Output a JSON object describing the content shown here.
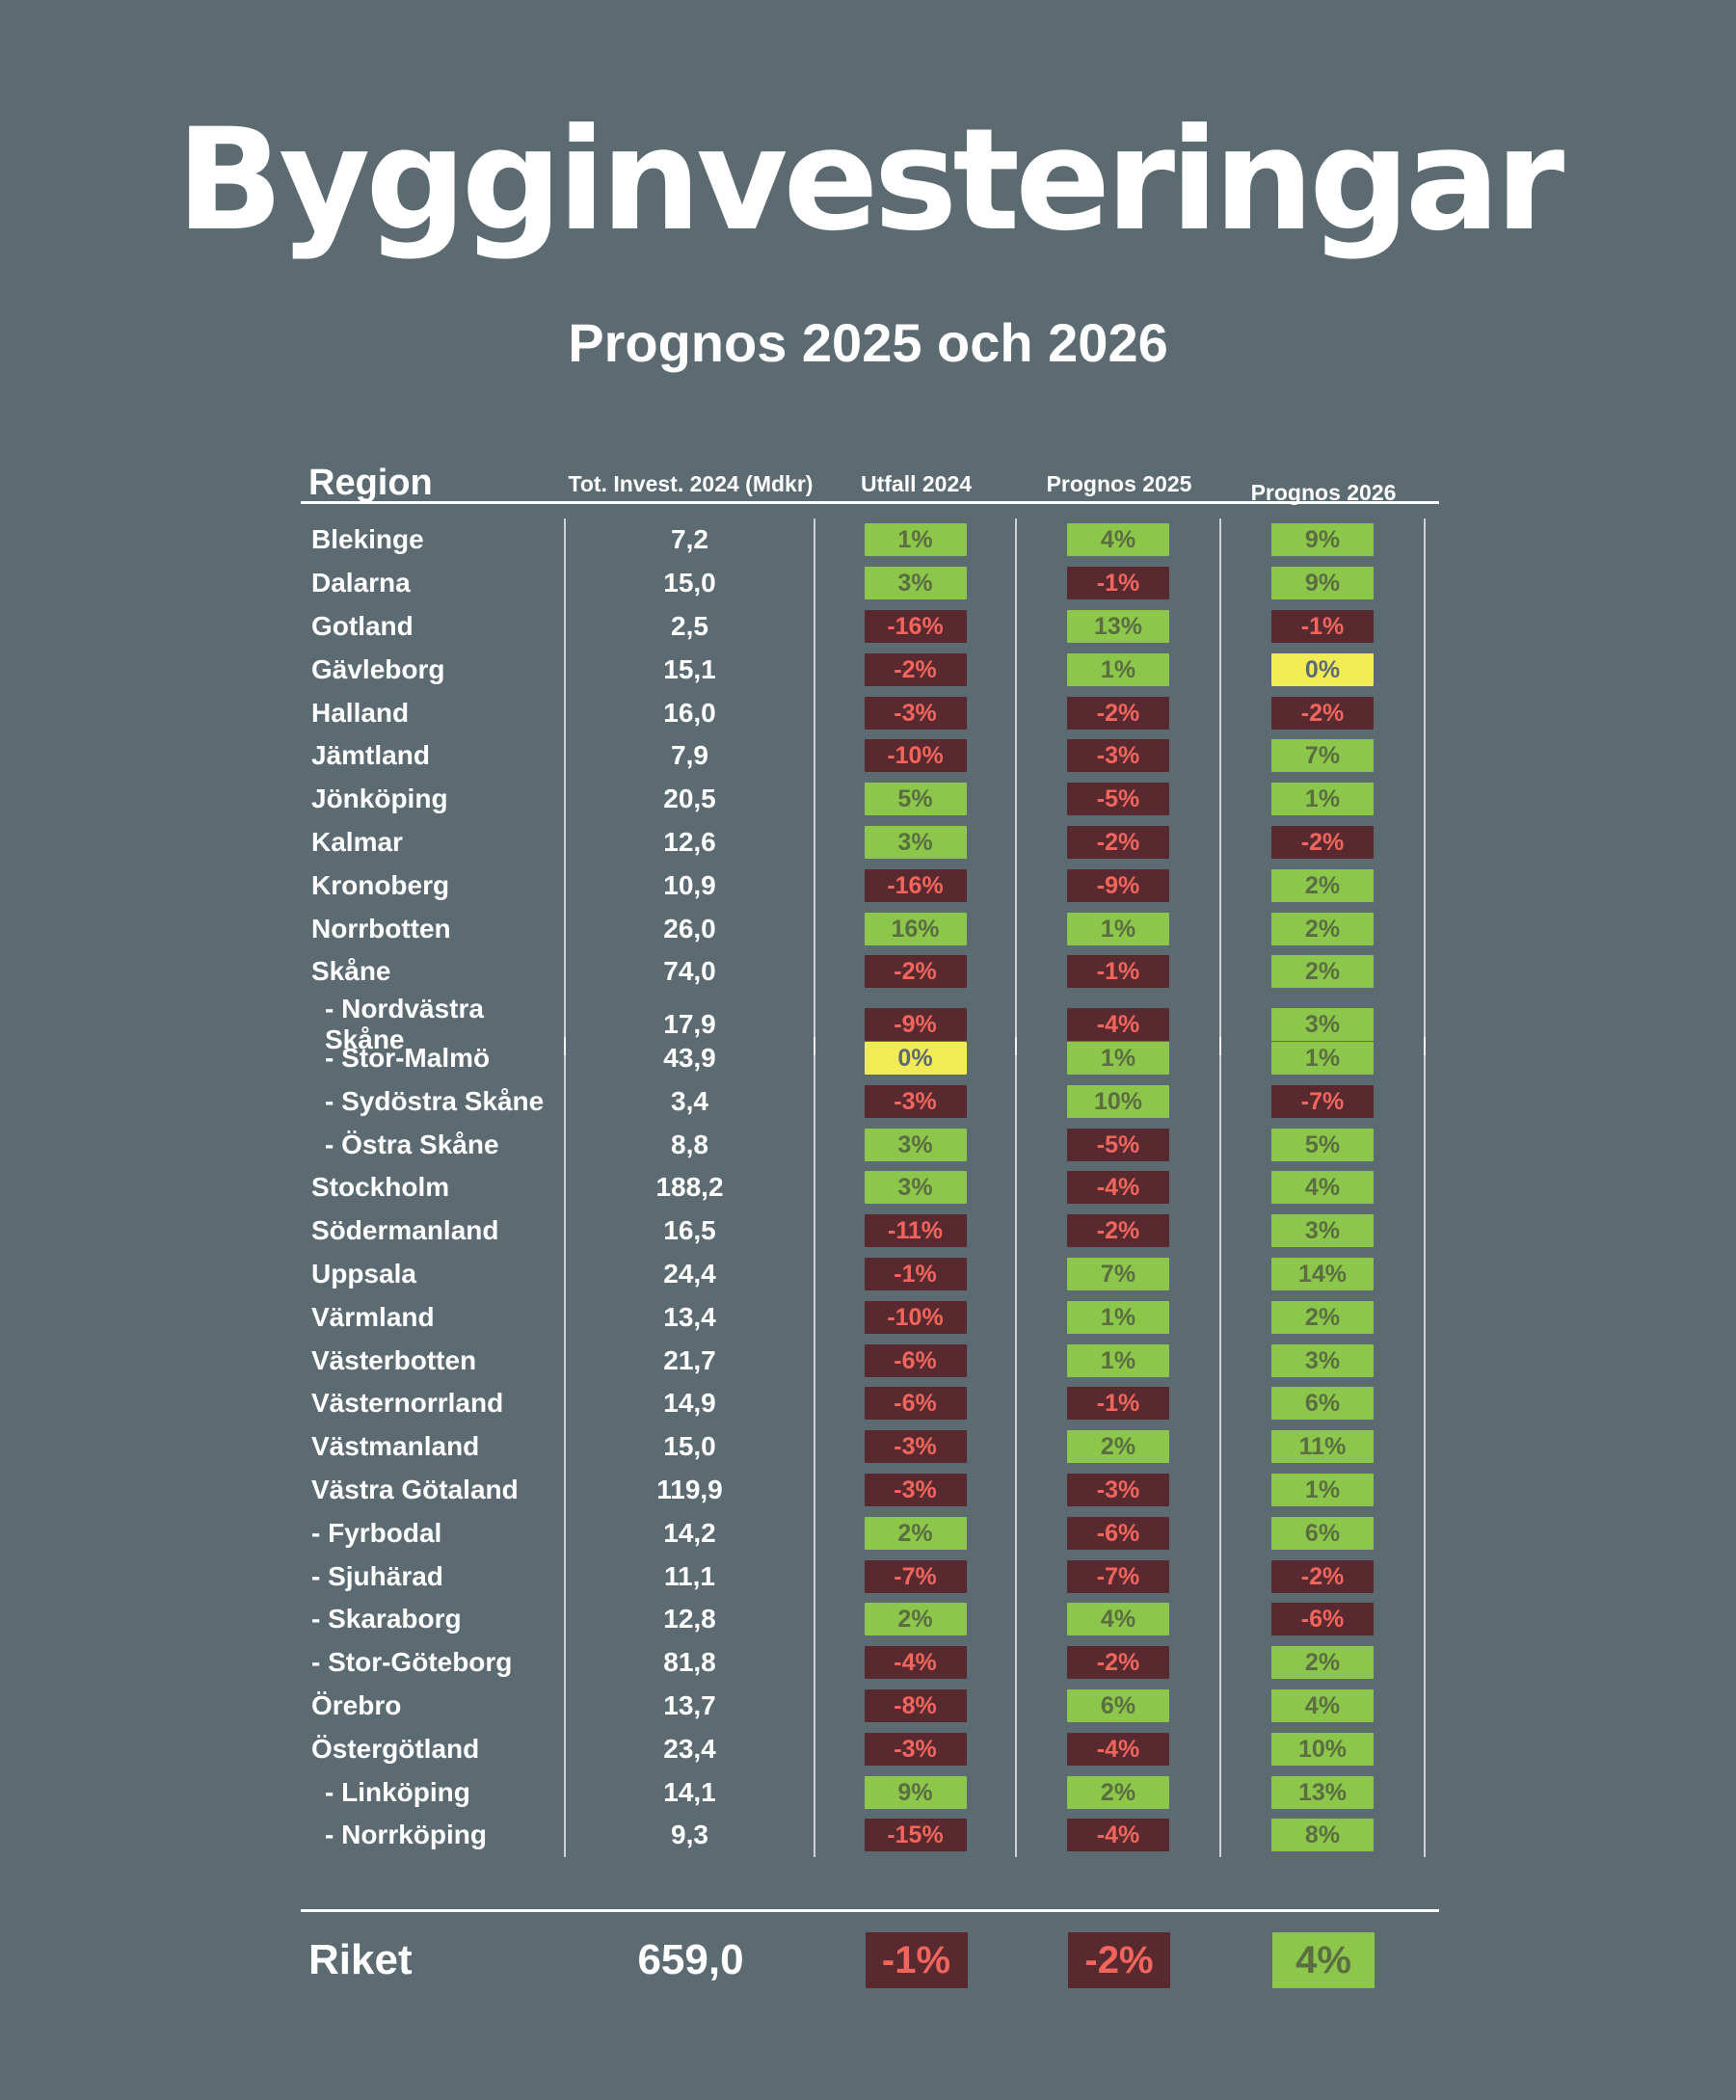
{
  "title": "Bygginvesteringar",
  "subtitle": "Prognos 2025 och 2026",
  "colors": {
    "background": "#5c6a72",
    "text": "#ffffff",
    "green_badge": "#8cc64a",
    "green_badge_text": "#5a6e42",
    "red_badge": "#582a30",
    "red_badge_text": "#f2655c",
    "yellow_badge": "#f1eb55",
    "yellow_badge_text": "#5c6a72",
    "rule": "#ffffff"
  },
  "chart_data": {
    "type": "table",
    "title": "Bygginvesteringar",
    "subtitle": "Prognos 2025 och 2026",
    "columns": [
      "Region",
      "Tot. Invest. 2024 (Mdkr)",
      "Utfall 2024",
      "Prognos 2025",
      "Prognos 2026"
    ],
    "rows": [
      {
        "region": "Blekinge",
        "indent": 0,
        "invest": "7,2",
        "badges": [
          {
            "value": "1%",
            "tone": "green"
          },
          {
            "value": "4%",
            "tone": "green"
          },
          {
            "value": "9%",
            "tone": "green"
          }
        ]
      },
      {
        "region": "Dalarna",
        "indent": 0,
        "invest": "15,0",
        "badges": [
          {
            "value": "3%",
            "tone": "green"
          },
          {
            "value": "-1%",
            "tone": "red"
          },
          {
            "value": "9%",
            "tone": "green"
          }
        ]
      },
      {
        "region": "Gotland",
        "indent": 0,
        "invest": "2,5",
        "badges": [
          {
            "value": "-16%",
            "tone": "red"
          },
          {
            "value": "13%",
            "tone": "green"
          },
          {
            "value": "-1%",
            "tone": "red"
          }
        ]
      },
      {
        "region": "Gävleborg",
        "indent": 0,
        "invest": "15,1",
        "badges": [
          {
            "value": "-2%",
            "tone": "red"
          },
          {
            "value": "1%",
            "tone": "green"
          },
          {
            "value": "0%",
            "tone": "yellow"
          }
        ]
      },
      {
        "region": "Halland",
        "indent": 0,
        "invest": "16,0",
        "badges": [
          {
            "value": "-3%",
            "tone": "red"
          },
          {
            "value": "-2%",
            "tone": "red"
          },
          {
            "value": "-2%",
            "tone": "red"
          }
        ]
      },
      {
        "region": "Jämtland",
        "indent": 0,
        "invest": "7,9",
        "badges": [
          {
            "value": "-10%",
            "tone": "red"
          },
          {
            "value": "-3%",
            "tone": "red"
          },
          {
            "value": "7%",
            "tone": "green"
          }
        ]
      },
      {
        "region": "Jönköping",
        "indent": 0,
        "invest": "20,5",
        "badges": [
          {
            "value": "5%",
            "tone": "green"
          },
          {
            "value": "-5%",
            "tone": "red"
          },
          {
            "value": "1%",
            "tone": "green"
          }
        ]
      },
      {
        "region": "Kalmar",
        "indent": 0,
        "invest": "12,6",
        "badges": [
          {
            "value": "3%",
            "tone": "green"
          },
          {
            "value": "-2%",
            "tone": "red"
          },
          {
            "value": "-2%",
            "tone": "red"
          }
        ]
      },
      {
        "region": "Kronoberg",
        "indent": 0,
        "invest": "10,9",
        "badges": [
          {
            "value": "-16%",
            "tone": "red"
          },
          {
            "value": "-9%",
            "tone": "red"
          },
          {
            "value": "2%",
            "tone": "green"
          }
        ]
      },
      {
        "region": "Norrbotten",
        "indent": 0,
        "invest": "26,0",
        "badges": [
          {
            "value": "16%",
            "tone": "green"
          },
          {
            "value": "1%",
            "tone": "green"
          },
          {
            "value": "2%",
            "tone": "green"
          }
        ]
      },
      {
        "region": "Skåne",
        "indent": 0,
        "invest": "74,0",
        "badges": [
          {
            "value": "-2%",
            "tone": "red"
          },
          {
            "value": "-1%",
            "tone": "red"
          },
          {
            "value": "2%",
            "tone": "green"
          }
        ]
      },
      {
        "region": "- Nordvästra Skåne",
        "indent": 1,
        "invest": "17,9",
        "badges": [
          {
            "value": "-9%",
            "tone": "red"
          },
          {
            "value": "-4%",
            "tone": "red"
          },
          {
            "value": "3%",
            "tone": "green"
          }
        ]
      },
      {
        "region": "- Stor-Malmö",
        "indent": 1,
        "invest": "43,9",
        "badges": [
          {
            "value": "0%",
            "tone": "yellow"
          },
          {
            "value": "1%",
            "tone": "green"
          },
          {
            "value": "1%",
            "tone": "green"
          }
        ]
      },
      {
        "region": "- Sydöstra Skåne",
        "indent": 1,
        "invest": "3,4",
        "badges": [
          {
            "value": "-3%",
            "tone": "red"
          },
          {
            "value": "10%",
            "tone": "green"
          },
          {
            "value": "-7%",
            "tone": "red"
          }
        ]
      },
      {
        "region": "- Östra Skåne",
        "indent": 1,
        "invest": "8,8",
        "badges": [
          {
            "value": "3%",
            "tone": "green"
          },
          {
            "value": "-5%",
            "tone": "red"
          },
          {
            "value": "5%",
            "tone": "green"
          }
        ]
      },
      {
        "region": "Stockholm",
        "indent": 0,
        "invest": "188,2",
        "badges": [
          {
            "value": "3%",
            "tone": "green"
          },
          {
            "value": "-4%",
            "tone": "red"
          },
          {
            "value": "4%",
            "tone": "green"
          }
        ]
      },
      {
        "region": "Södermanland",
        "indent": 0,
        "invest": "16,5",
        "badges": [
          {
            "value": "-11%",
            "tone": "red"
          },
          {
            "value": "-2%",
            "tone": "red"
          },
          {
            "value": "3%",
            "tone": "green"
          }
        ]
      },
      {
        "region": "Uppsala",
        "indent": 0,
        "invest": "24,4",
        "badges": [
          {
            "value": "-1%",
            "tone": "red"
          },
          {
            "value": "7%",
            "tone": "green"
          },
          {
            "value": "14%",
            "tone": "green"
          }
        ]
      },
      {
        "region": "Värmland",
        "indent": 0,
        "invest": "13,4",
        "badges": [
          {
            "value": "-10%",
            "tone": "red"
          },
          {
            "value": "1%",
            "tone": "green"
          },
          {
            "value": "2%",
            "tone": "green"
          }
        ]
      },
      {
        "region": "Västerbotten",
        "indent": 0,
        "invest": "21,7",
        "badges": [
          {
            "value": "-6%",
            "tone": "red"
          },
          {
            "value": "1%",
            "tone": "green"
          },
          {
            "value": "3%",
            "tone": "green"
          }
        ]
      },
      {
        "region": "Västernorrland",
        "indent": 0,
        "invest": "14,9",
        "badges": [
          {
            "value": "-6%",
            "tone": "red"
          },
          {
            "value": "-1%",
            "tone": "red"
          },
          {
            "value": "6%",
            "tone": "green"
          }
        ]
      },
      {
        "region": "Västmanland",
        "indent": 0,
        "invest": "15,0",
        "badges": [
          {
            "value": "-3%",
            "tone": "red"
          },
          {
            "value": "2%",
            "tone": "green"
          },
          {
            "value": "11%",
            "tone": "green"
          }
        ]
      },
      {
        "region": "Västra Götaland",
        "indent": 0,
        "invest": "119,9",
        "badges": [
          {
            "value": "-3%",
            "tone": "red"
          },
          {
            "value": "-3%",
            "tone": "red"
          },
          {
            "value": "1%",
            "tone": "green"
          }
        ]
      },
      {
        "region": "- Fyrbodal",
        "indent": 0,
        "invest": "14,2",
        "badges": [
          {
            "value": "2%",
            "tone": "green"
          },
          {
            "value": "-6%",
            "tone": "red"
          },
          {
            "value": "6%",
            "tone": "green"
          }
        ]
      },
      {
        "region": "- Sjuhärad",
        "indent": 0,
        "invest": "11,1",
        "badges": [
          {
            "value": "-7%",
            "tone": "red"
          },
          {
            "value": "-7%",
            "tone": "red"
          },
          {
            "value": "-2%",
            "tone": "red"
          }
        ]
      },
      {
        "region": "- Skaraborg",
        "indent": 0,
        "invest": "12,8",
        "badges": [
          {
            "value": "2%",
            "tone": "green"
          },
          {
            "value": "4%",
            "tone": "green"
          },
          {
            "value": "-6%",
            "tone": "red"
          }
        ]
      },
      {
        "region": "- Stor-Göteborg",
        "indent": 0,
        "invest": "81,8",
        "badges": [
          {
            "value": "-4%",
            "tone": "red"
          },
          {
            "value": "-2%",
            "tone": "red"
          },
          {
            "value": "2%",
            "tone": "green"
          }
        ]
      },
      {
        "region": "Örebro",
        "indent": 0,
        "invest": "13,7",
        "badges": [
          {
            "value": "-8%",
            "tone": "red"
          },
          {
            "value": "6%",
            "tone": "green"
          },
          {
            "value": "4%",
            "tone": "green"
          }
        ]
      },
      {
        "region": "Östergötland",
        "indent": 0,
        "invest": "23,4",
        "badges": [
          {
            "value": "-3%",
            "tone": "red"
          },
          {
            "value": "-4%",
            "tone": "red"
          },
          {
            "value": "10%",
            "tone": "green"
          }
        ]
      },
      {
        "region": "- Linköping",
        "indent": 1,
        "invest": "14,1",
        "badges": [
          {
            "value": "9%",
            "tone": "green"
          },
          {
            "value": "2%",
            "tone": "green"
          },
          {
            "value": "13%",
            "tone": "green"
          }
        ]
      },
      {
        "region": "- Norrköping",
        "indent": 1,
        "invest": "9,3",
        "badges": [
          {
            "value": "-15%",
            "tone": "red"
          },
          {
            "value": "-4%",
            "tone": "red"
          },
          {
            "value": "8%",
            "tone": "green"
          }
        ]
      }
    ],
    "footer_row": {
      "region": "Riket",
      "invest": "659,0",
      "badges": [
        {
          "value": "-1%",
          "tone": "red"
        },
        {
          "value": "-2%",
          "tone": "red"
        },
        {
          "value": "4%",
          "tone": "green"
        }
      ]
    }
  }
}
